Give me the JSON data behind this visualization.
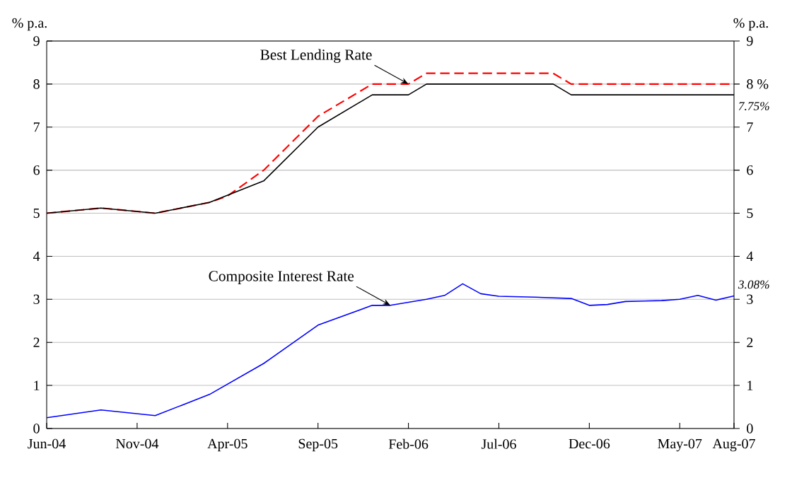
{
  "chart_data": {
    "type": "line",
    "ylabel": "% p.a.",
    "y2label": "% p.a.",
    "xlim": [
      "2004-06",
      "2007-08"
    ],
    "xticks": [
      {
        "value": "2004-06",
        "label": "Jun-04"
      },
      {
        "value": "2004-11",
        "label": "Nov-04"
      },
      {
        "value": "2005-04",
        "label": "Apr-05"
      },
      {
        "value": "2005-09",
        "label": "Sep-05"
      },
      {
        "value": "2006-02",
        "label": "Feb-06"
      },
      {
        "value": "2006-07",
        "label": "Jul-06"
      },
      {
        "value": "2006-12",
        "label": "Dec-06"
      },
      {
        "value": "2007-05",
        "label": "May-07"
      },
      {
        "value": "2007-08",
        "label": "Aug-07"
      }
    ],
    "ylim": [
      0,
      9
    ],
    "yticks": [
      0,
      1,
      2,
      3,
      4,
      5,
      6,
      7,
      8,
      9
    ],
    "y2lim": [
      0,
      9
    ],
    "y2ticks": [
      0,
      1,
      2,
      3,
      4,
      5,
      6,
      7,
      {
        "value": 8,
        "label": "8 %"
      },
      9
    ],
    "grid": "y",
    "marker": "none",
    "line_style": "solid",
    "series": [
      {
        "color": "#ff0000",
        "line_style": "dashed",
        "x": [
          "2004-06",
          "2004-09",
          "2004-12",
          "2005-03",
          "2005-04",
          "2005-06",
          "2005-09",
          "2005-12",
          "2006-02",
          "2006-03",
          "2006-10",
          "2006-11",
          "2007-08"
        ],
        "values": [
          5.0,
          5.12,
          5.0,
          5.25,
          5.4,
          6.0,
          7.25,
          8.0,
          8.0,
          8.25,
          8.25,
          8.0,
          8.0
        ]
      },
      {
        "color": "#000000",
        "x": [
          "2004-06",
          "2004-09",
          "2004-12",
          "2005-03",
          "2005-06",
          "2005-09",
          "2005-12",
          "2006-02",
          "2006-03",
          "2006-10",
          "2006-11",
          "2007-08"
        ],
        "values": [
          5.0,
          5.12,
          5.0,
          5.25,
          5.75,
          7.0,
          7.75,
          7.75,
          8.0,
          8.0,
          7.75,
          7.75
        ]
      },
      {
        "color": "#0000ff",
        "x": [
          "2004-06",
          "2004-09",
          "2004-12",
          "2005-03",
          "2005-06",
          "2005-09",
          "2005-12",
          "2006-01",
          "2006-03",
          "2006-04",
          "2006-05",
          "2006-06",
          "2006-07",
          "2006-09",
          "2006-11",
          "2006-12",
          "2007-01",
          "2007-02",
          "2007-03",
          "2007-04",
          "2007-05",
          "2007-06",
          "2007-07",
          "2007-08"
        ],
        "values": [
          0.25,
          0.43,
          0.3,
          0.79,
          1.51,
          2.4,
          2.86,
          2.86,
          3.0,
          3.09,
          3.36,
          3.13,
          3.07,
          3.05,
          3.02,
          2.86,
          2.88,
          2.95,
          2.96,
          2.97,
          3.0,
          3.09,
          2.98,
          3.08
        ]
      }
    ],
    "annotations": [
      {
        "text": "Best Lending Rate",
        "x": "2006-02",
        "y": 8
      },
      {
        "text": "Composite Interest Rate",
        "x": "2006-01",
        "y": 2.86
      },
      {
        "text": "7.75%",
        "x": "2007-08",
        "y": 7.75
      },
      {
        "text": "3.08%",
        "x": "2007-08",
        "y": 3.08
      }
    ]
  }
}
